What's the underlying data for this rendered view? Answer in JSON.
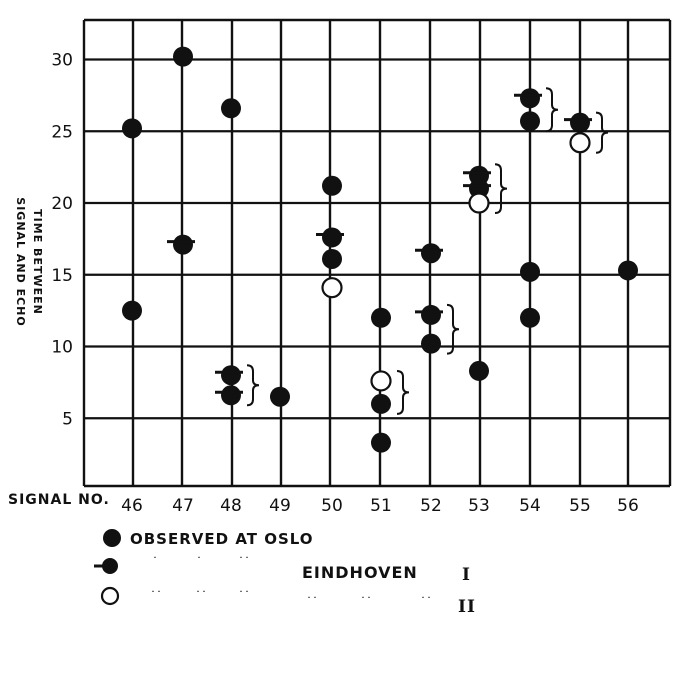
{
  "chart_data": {
    "type": "scatter",
    "title": "",
    "xlabel": "SIGNAL NO.",
    "ylabel": "TIME BETWEEN SIGNAL AND ECHO",
    "categories": [
      "46",
      "47",
      "48",
      "49",
      "50",
      "51",
      "52",
      "53",
      "54",
      "55",
      "56"
    ],
    "y_ticks": [
      "5",
      "10",
      "15",
      "20",
      "25",
      "30"
    ],
    "ylim": [
      0,
      32
    ],
    "grid": true,
    "legend_position": "bottom-left",
    "series": [
      {
        "name": "OBSERVED AT OSLO",
        "marker": "filled-circle",
        "points": [
          {
            "x": 46,
            "y": 25.2
          },
          {
            "x": 46,
            "y": 12.5
          },
          {
            "x": 47,
            "y": 30.2
          },
          {
            "x": 48,
            "y": 26.6
          },
          {
            "x": 49,
            "y": 6.5
          },
          {
            "x": 50,
            "y": 21.2
          },
          {
            "x": 50,
            "y": 16.1
          },
          {
            "x": 51,
            "y": 12
          },
          {
            "x": 51,
            "y": 6
          },
          {
            "x": 51,
            "y": 3.3
          },
          {
            "x": 52,
            "y": 10.2
          },
          {
            "x": 53,
            "y": 8.3
          },
          {
            "x": 54,
            "y": 25.7
          },
          {
            "x": 54,
            "y": 15.2
          },
          {
            "x": 54,
            "y": 12
          },
          {
            "x": 56,
            "y": 15.3
          }
        ]
      },
      {
        "name": "EINDHOVEN I",
        "marker": "filled-circle-with-dash",
        "points": [
          {
            "x": 47,
            "y": 17.1
          },
          {
            "x": 48,
            "y": 8
          },
          {
            "x": 48,
            "y": 6.6
          },
          {
            "x": 50,
            "y": 17.6
          },
          {
            "x": 52,
            "y": 16.5
          },
          {
            "x": 52,
            "y": 12.2
          },
          {
            "x": 53,
            "y": 21.9
          },
          {
            "x": 53,
            "y": 21
          },
          {
            "x": 54,
            "y": 27.3
          },
          {
            "x": 55,
            "y": 25.6
          }
        ]
      },
      {
        "name": "II",
        "marker": "open-circle",
        "points": [
          {
            "x": 50,
            "y": 14.1
          },
          {
            "x": 51,
            "y": 7.6
          },
          {
            "x": 53,
            "y": 20
          },
          {
            "x": 55,
            "y": 24.2
          }
        ]
      }
    ],
    "annotations": [
      {
        "type": "brace",
        "x": 48,
        "y_range": [
          6.6,
          8
        ]
      },
      {
        "type": "brace",
        "x": 51,
        "y_range": [
          6,
          7.6
        ]
      },
      {
        "type": "brace",
        "x": 52,
        "y_range": [
          10.2,
          12.2
        ]
      },
      {
        "type": "brace",
        "x": 53,
        "y_range": [
          20,
          22
        ]
      },
      {
        "type": "brace",
        "x": 54,
        "y_range": [
          25.7,
          27.3
        ]
      },
      {
        "type": "brace",
        "x": 55,
        "y_range": [
          24.2,
          25.6
        ]
      }
    ],
    "legend": {
      "row1_label": "OBSERVED AT OSLO",
      "row2_label": "EINDHOVEN",
      "row2_numeral": "I",
      "row3_numeral": "II"
    }
  }
}
